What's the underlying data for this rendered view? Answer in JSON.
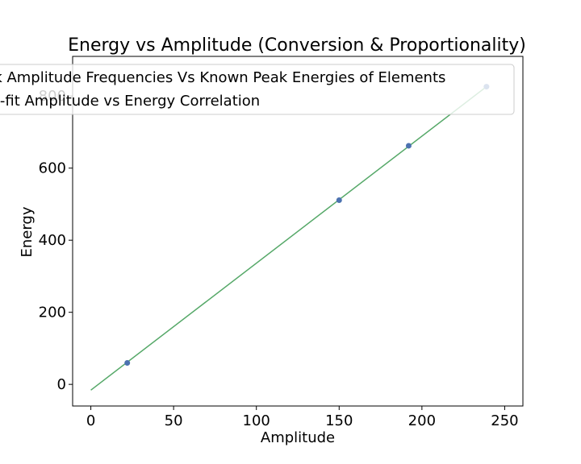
{
  "chart_data": {
    "type": "scatter",
    "title": "Energy vs Amplitude (Conversion & Proportionality)",
    "xlabel": "Amplitude",
    "ylabel": "Energy",
    "xlim": [
      -11,
      261
    ],
    "ylim": [
      -60,
      910
    ],
    "xticks": [
      0,
      50,
      100,
      150,
      200,
      250
    ],
    "yticks": [
      0,
      200,
      400,
      600,
      800
    ],
    "grid": false,
    "legend_position": "upper-left",
    "series": [
      {
        "name": "Peak Amplitude Frequencies Vs Known Peak Energies of Elements",
        "kind": "scatter",
        "color": "#4c72b0",
        "points": [
          {
            "x": 22,
            "y": 59.5
          },
          {
            "x": 150,
            "y": 511
          },
          {
            "x": 192,
            "y": 662
          },
          {
            "x": 239,
            "y": 826
          }
        ]
      },
      {
        "name": "Best-fit Amplitude vs Energy Correlation",
        "kind": "line",
        "color": "#55a868",
        "points": [
          {
            "x": 0,
            "y": -16
          },
          {
            "x": 239,
            "y": 826
          }
        ]
      }
    ]
  }
}
